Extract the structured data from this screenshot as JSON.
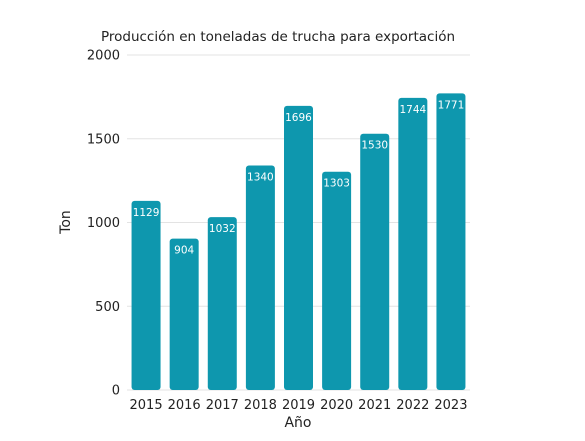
{
  "colors": {
    "bar": "#0e97ae",
    "grid": "#e3e3e3",
    "text": "#222222",
    "bar_label": "#ffffff"
  },
  "chart_data": {
    "type": "bar",
    "title": "Producción  en toneladas de trucha para exportación",
    "xlabel": "Año",
    "ylabel": "Ton",
    "categories": [
      "2015",
      "2016",
      "2017",
      "2018",
      "2019",
      "2020",
      "2021",
      "2022",
      "2023"
    ],
    "values": [
      1129,
      904,
      1032,
      1340,
      1696,
      1303,
      1530,
      1744,
      1771
    ],
    "ylim": [
      0,
      2000
    ],
    "yticks": [
      0,
      500,
      1000,
      1500,
      2000
    ],
    "grid": true,
    "data_labels": true
  }
}
